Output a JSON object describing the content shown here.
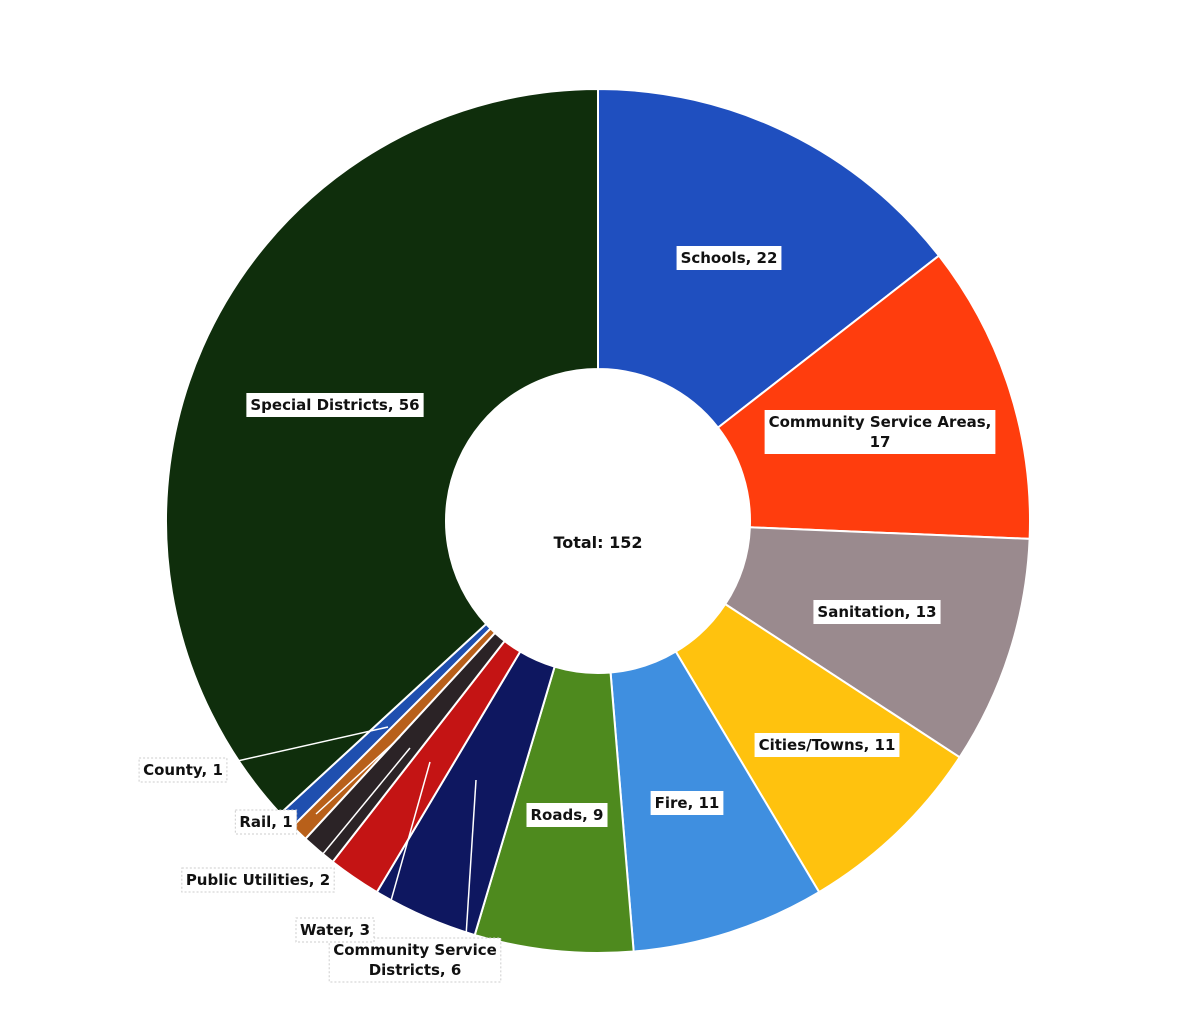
{
  "chart_data": {
    "type": "pie",
    "center_label": "Total: 152",
    "total": 152,
    "slices": [
      {
        "name": "Schools",
        "value": 22,
        "label_lines": [
          "Schools, 22"
        ],
        "color": "#1F4FBF"
      },
      {
        "name": "Community Service Areas",
        "value": 17,
        "label_lines": [
          "Community Service Areas,",
          "17"
        ],
        "color": "#FF3D0D"
      },
      {
        "name": "Sanitation",
        "value": 13,
        "label_lines": [
          "Sanitation, 13"
        ],
        "color": "#9A8A8E"
      },
      {
        "name": "Cities/Towns",
        "value": 11,
        "label_lines": [
          "Cities/Towns, 11"
        ],
        "color": "#FFC20E"
      },
      {
        "name": "Fire",
        "value": 11,
        "label_lines": [
          "Fire, 11"
        ],
        "color": "#3F8FE0"
      },
      {
        "name": "Roads",
        "value": 9,
        "label_lines": [
          "Roads, 9"
        ],
        "color": "#4E8A1E"
      },
      {
        "name": "Community Service Districts",
        "value": 6,
        "label_lines": [
          "Community Service",
          "Districts, 6"
        ],
        "color": "#0E1760"
      },
      {
        "name": "Water",
        "value": 3,
        "label_lines": [
          "Water, 3"
        ],
        "color": "#C41414"
      },
      {
        "name": "Public Utilities",
        "value": 2,
        "label_lines": [
          "Public Utilities, 2"
        ],
        "color": "#2B2326"
      },
      {
        "name": "Rail",
        "value": 1,
        "label_lines": [
          "Rail, 1"
        ],
        "color": "#B8601A"
      },
      {
        "name": "County",
        "value": 1,
        "label_lines": [
          "County, 1"
        ],
        "color": "#1F4FAF"
      },
      {
        "name": "Special Districts",
        "value": 56,
        "label_lines": [
          "Special Districts, 56"
        ],
        "color": "#0F2E0C"
      }
    ]
  }
}
